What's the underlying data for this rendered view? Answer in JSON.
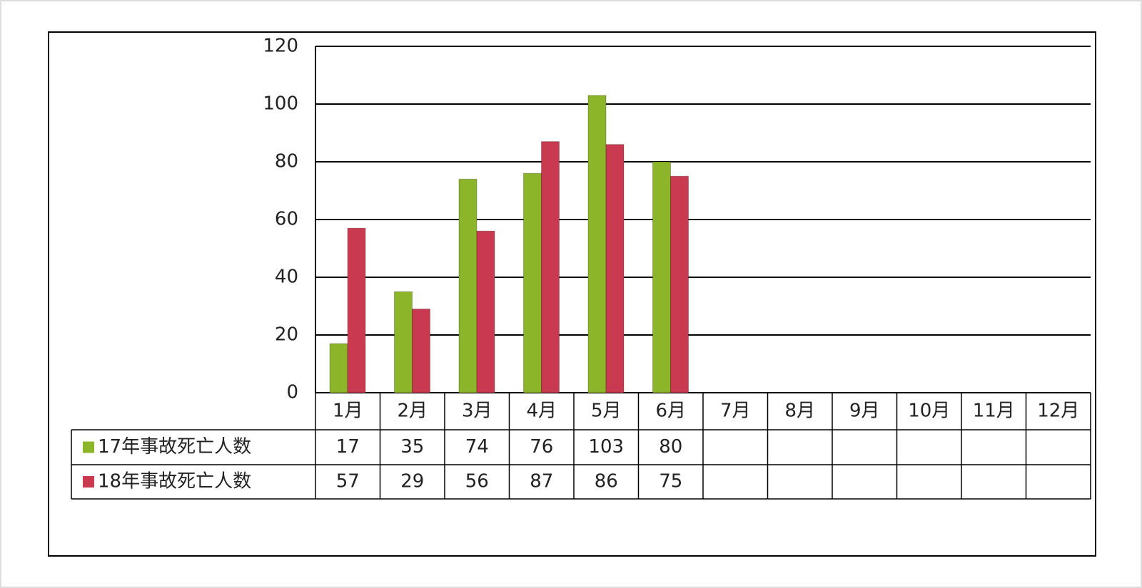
{
  "chart_data": {
    "type": "bar",
    "categories": [
      "1月",
      "2月",
      "3月",
      "4月",
      "5月",
      "6月",
      "7月",
      "8月",
      "9月",
      "10月",
      "11月",
      "12月"
    ],
    "series": [
      {
        "name": "17年事故死亡人数",
        "color": "#8db52a",
        "values": [
          17,
          35,
          74,
          76,
          103,
          80,
          null,
          null,
          null,
          null,
          null,
          null
        ]
      },
      {
        "name": "18年事故死亡人数",
        "color": "#c9394f",
        "values": [
          57,
          29,
          56,
          87,
          86,
          75,
          null,
          null,
          null,
          null,
          null,
          null
        ]
      }
    ],
    "ylim": [
      0,
      120
    ],
    "yticks": [
      0,
      20,
      40,
      60,
      80,
      100,
      120
    ],
    "grid": true
  }
}
